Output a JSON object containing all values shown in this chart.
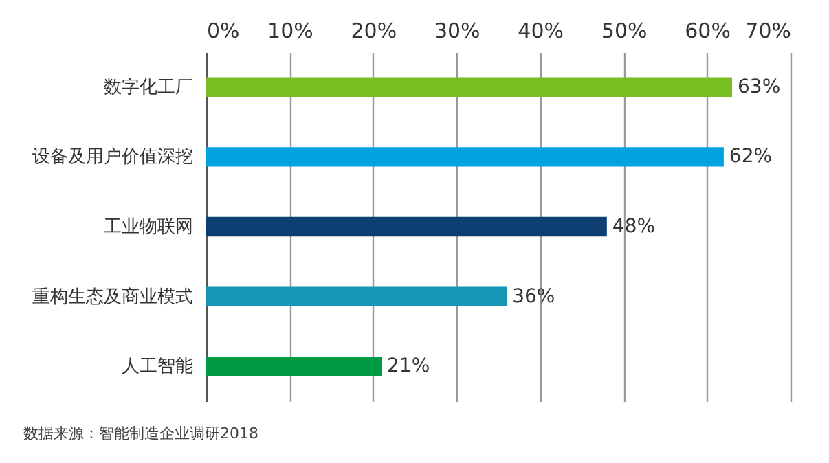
{
  "chart_data": {
    "type": "bar",
    "orientation": "horizontal",
    "categories": [
      "数字化工厂",
      "设备及用户价值深挖",
      "工业物联网",
      "重构生态及商业模式",
      "人工智能"
    ],
    "values": [
      63,
      62,
      48,
      36,
      21
    ],
    "colors": [
      "#78be20",
      "#00a3e0",
      "#0d3f73",
      "#1496b4",
      "#009a44"
    ],
    "value_labels": [
      "63%",
      "62%",
      "48%",
      "36%",
      "21%"
    ],
    "xlim": [
      0,
      70
    ],
    "xticks": [
      {
        "value": 0,
        "label": "0%"
      },
      {
        "value": 10,
        "label": "10%"
      },
      {
        "value": 20,
        "label": "20%"
      },
      {
        "value": 30,
        "label": "30%"
      },
      {
        "value": 40,
        "label": "40%"
      },
      {
        "value": 50,
        "label": "50%"
      },
      {
        "value": 60,
        "label": "60%"
      },
      {
        "value": 70,
        "label": "70%"
      }
    ],
    "grid": "x",
    "annotations": [
      "数据来源：智能制造企业调研2018"
    ]
  }
}
